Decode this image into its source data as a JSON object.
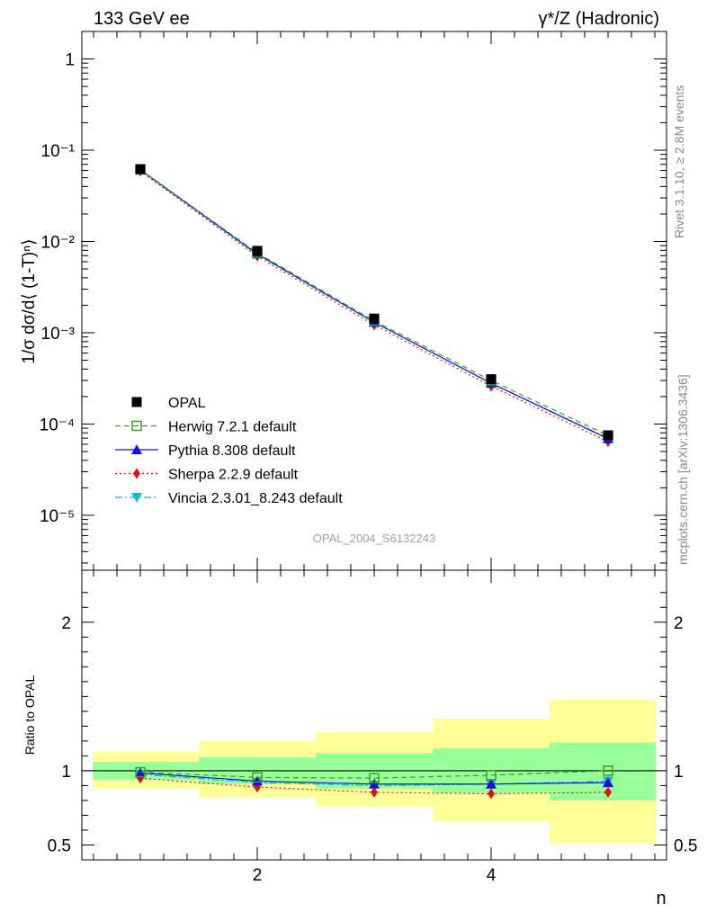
{
  "header": {
    "left": "133 GeV ee",
    "right": "γ*/Z (Hadronic)"
  },
  "side_text": {
    "rivet": "Rivet 3.1.10, ≥ 2.8M events",
    "mcplots": "mcplots.cern.ch [arXiv:1306.3436]"
  },
  "analysis_label": "OPAL_2004_S6132243",
  "top_ylabel": "1/σ dσ/d⟨ (1-T)ⁿ⟩",
  "bottom_ylabel": "Ratio to OPAL",
  "xlabel": "n",
  "colors": {
    "opal": "#000000",
    "herwig": "#3a9e22",
    "pythia": "#1414d2",
    "sherpa": "#e01010",
    "vincia": "#18b4c8",
    "band_inner": "#99ff99",
    "band_outer": "#ffff99"
  },
  "chart_data": [
    {
      "type": "line",
      "scale": "log",
      "x": [
        1,
        2,
        3,
        4,
        5
      ],
      "xlim": [
        0.5,
        5.5
      ],
      "ylim": [
        2.5e-06,
        2
      ],
      "y_ticks": [
        "1",
        "10⁻¹",
        "10⁻²",
        "10⁻³",
        "10⁻⁴",
        "10⁻⁵"
      ],
      "legend_position": "bottom-left",
      "series": [
        {
          "name": "OPAL",
          "marker": "square-filled",
          "values": [
            0.062,
            0.0079,
            0.00143,
            0.00031,
            7.5e-05
          ]
        },
        {
          "name": "Herwig 7.2.1 default",
          "marker": "square-open",
          "line": "dashed",
          "values": [
            0.0615,
            0.0075,
            0.00135,
            0.0003,
            7.5e-05
          ]
        },
        {
          "name": "Pythia 8.308 default",
          "marker": "triangle-up",
          "line": "solid",
          "values": [
            0.061,
            0.0073,
            0.0013,
            0.00028,
            6.9e-05
          ]
        },
        {
          "name": "Sherpa 2.2.9 default",
          "marker": "diamond",
          "line": "dotted",
          "values": [
            0.059,
            0.0069,
            0.00122,
            0.00026,
            6.4e-05
          ]
        },
        {
          "name": "Vincia 2.3.01_8.243 default",
          "marker": "triangle-down",
          "line": "dashdot",
          "values": [
            0.0605,
            0.0072,
            0.0013,
            0.00028,
            7e-05
          ]
        }
      ]
    },
    {
      "type": "line",
      "xlabel": "n",
      "ylabel": "Ratio to OPAL",
      "x": [
        1,
        2,
        3,
        4,
        5
      ],
      "xlim": [
        0.5,
        5.5
      ],
      "ylim": [
        0.4,
        2.35
      ],
      "y_ticks": [
        0.5,
        1,
        2
      ],
      "x_ticks": [
        2,
        4
      ],
      "uncertainty_bands": {
        "inner": {
          "lower": [
            0.94,
            0.91,
            0.88,
            0.85,
            0.8
          ],
          "upper": [
            1.06,
            1.09,
            1.12,
            1.15,
            1.19
          ]
        },
        "outer": {
          "lower": [
            0.88,
            0.82,
            0.76,
            0.66,
            0.51
          ],
          "upper": [
            1.13,
            1.2,
            1.26,
            1.35,
            1.48
          ]
        }
      },
      "series": [
        {
          "name": "Herwig 7.2.1 default",
          "values": [
            0.99,
            0.955,
            0.95,
            0.97,
            1.0
          ]
        },
        {
          "name": "Pythia 8.308 default",
          "values": [
            0.985,
            0.93,
            0.91,
            0.91,
            0.92
          ]
        },
        {
          "name": "Sherpa 2.2.9 default",
          "values": [
            0.95,
            0.89,
            0.855,
            0.845,
            0.855
          ]
        },
        {
          "name": "Vincia 2.3.01_8.243 default",
          "values": [
            0.975,
            0.92,
            0.9,
            0.91,
            0.93
          ]
        }
      ]
    }
  ]
}
